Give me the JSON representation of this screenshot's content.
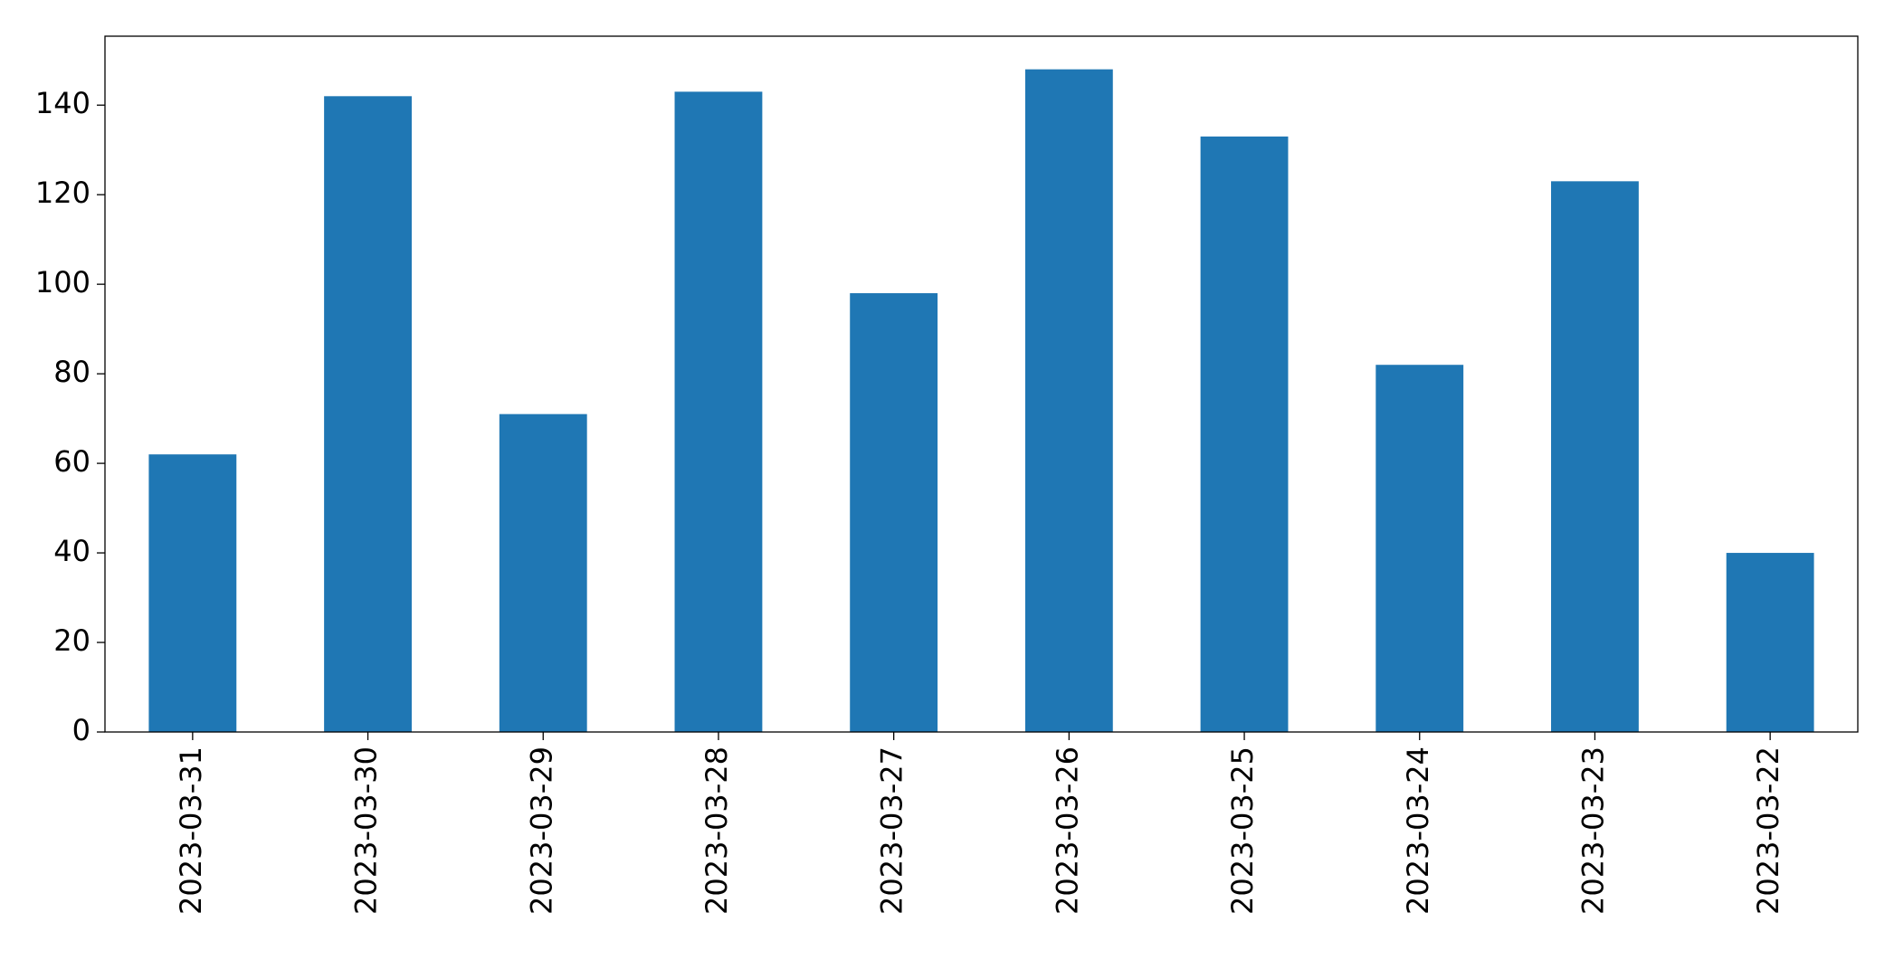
{
  "chart_data": {
    "type": "bar",
    "categories": [
      "2023-03-31",
      "2023-03-30",
      "2023-03-29",
      "2023-03-28",
      "2023-03-27",
      "2023-03-26",
      "2023-03-25",
      "2023-03-24",
      "2023-03-23",
      "2023-03-22"
    ],
    "values": [
      62,
      142,
      71,
      143,
      98,
      148,
      133,
      82,
      123,
      40
    ],
    "color": "#1f77b4",
    "ylim": [
      0,
      155.4
    ],
    "yticks": [
      0,
      20,
      40,
      60,
      80,
      100,
      120,
      140
    ],
    "grid": false
  }
}
